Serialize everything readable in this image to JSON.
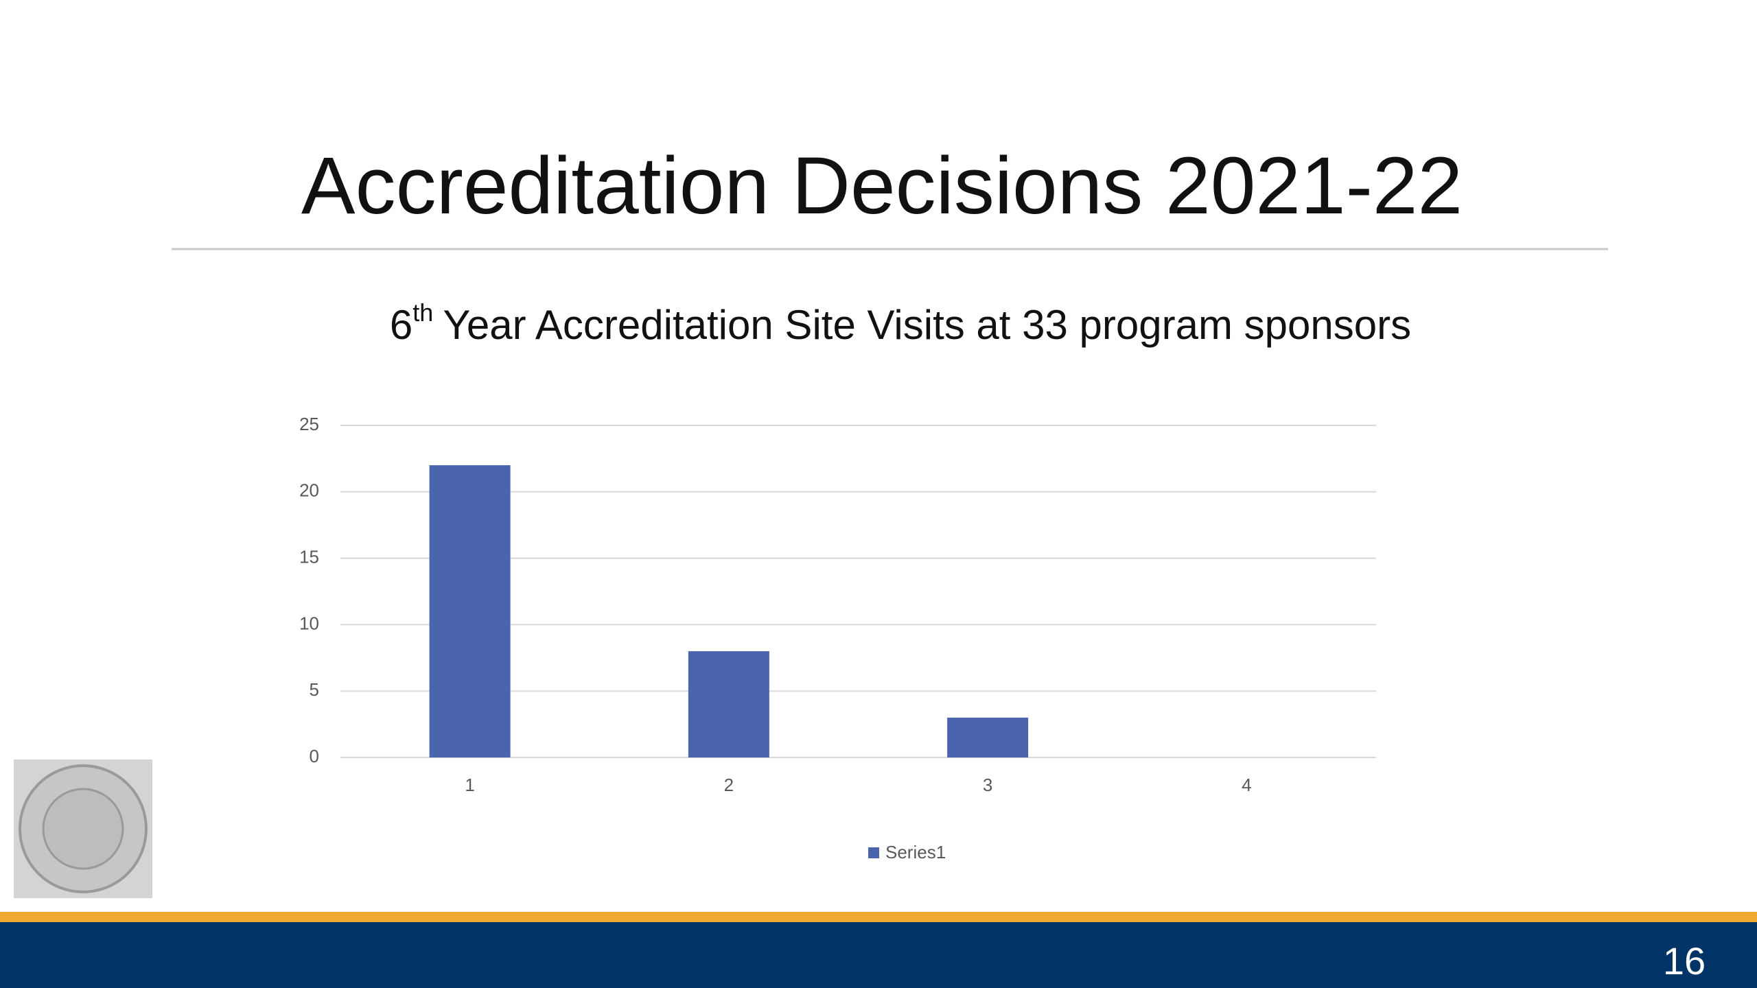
{
  "slide": {
    "title": "Accreditation Decisions 2021-22",
    "subtitle": {
      "number": "6",
      "superscript": "th",
      "text": "Year Accreditation Site Visits at 33 program sponsors"
    },
    "page_number": "16"
  },
  "chart_data": {
    "type": "bar",
    "categories": [
      "1",
      "2",
      "3",
      "4"
    ],
    "series": [
      {
        "name": "Series1",
        "color": "#4a65ad",
        "values": [
          22,
          8,
          3,
          0
        ]
      }
    ],
    "ylim": [
      0,
      25
    ],
    "yticks": [
      0,
      5,
      10,
      15,
      20,
      25
    ],
    "grid": true,
    "legend": "bottom"
  }
}
